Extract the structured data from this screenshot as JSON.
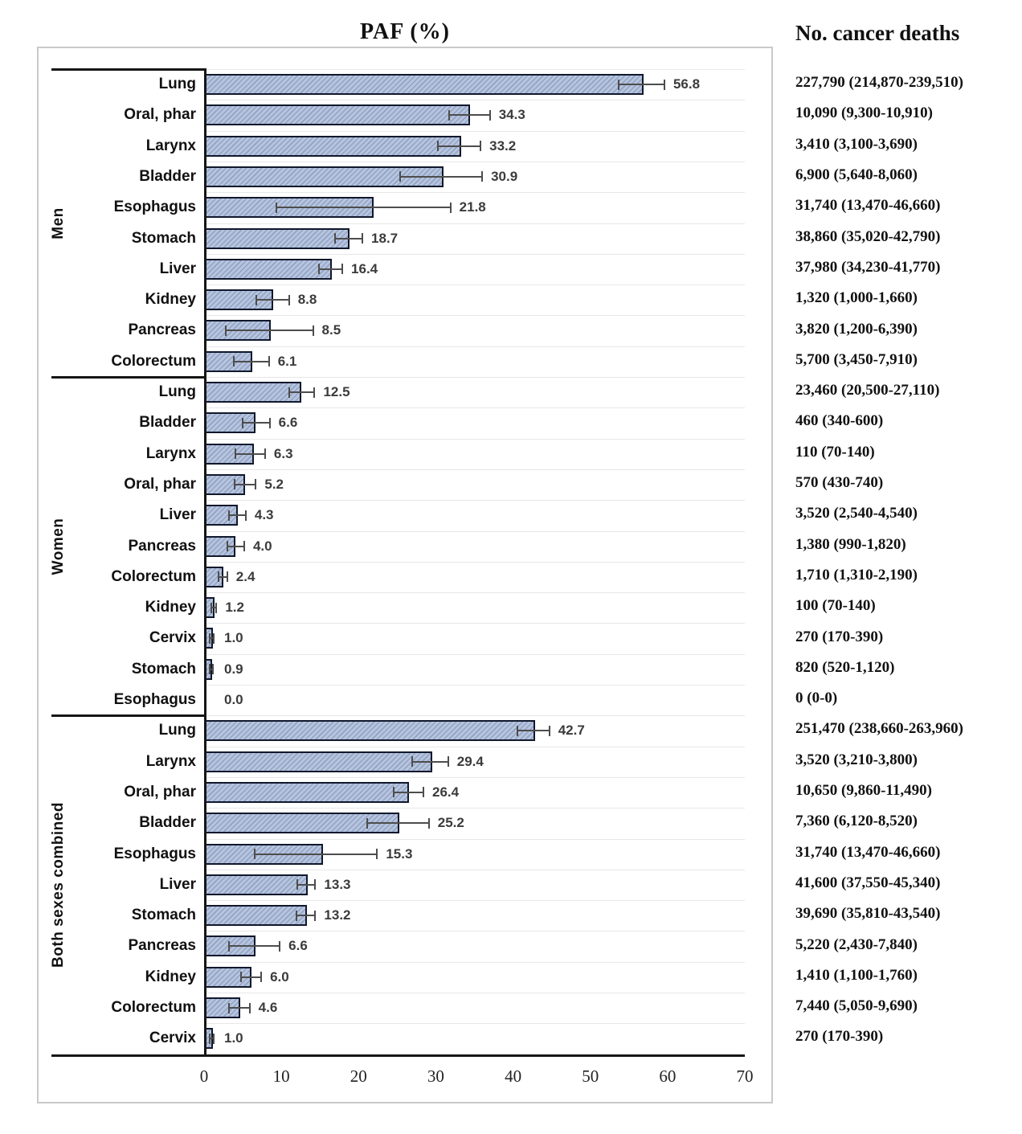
{
  "title": "PAF (%)",
  "right_header": "No. cancer deaths",
  "colors": {
    "bar_fill": "#b7c4de",
    "bar_hatch": "#91a3c4",
    "bar_border": "#10182b",
    "error_bar": "#4d4d4d",
    "value_text": "#3b3b3b",
    "grid_line": "#e7e7e7",
    "box_border": "#c9c9c9",
    "black_line": "#161616",
    "text": "#111111"
  },
  "chart_data": {
    "type": "bar",
    "orientation": "horizontal",
    "title": "PAF (%)",
    "right_column_header": "No. cancer deaths",
    "xlim": [
      0,
      70
    ],
    "x_ticks": [
      0,
      10,
      20,
      30,
      40,
      50,
      60,
      70
    ],
    "grid": "light horizontal row separators",
    "error_bars": true,
    "groups": [
      {
        "label": "Men",
        "rows": [
          {
            "category": "Lung",
            "paf": 56.8,
            "ci_low": 53.6,
            "ci_high": 59.7,
            "deaths": "227,790 (214,870-239,510)"
          },
          {
            "category": "Oral, phar",
            "paf": 34.3,
            "ci_low": 31.6,
            "ci_high": 37.1,
            "deaths": "10,090 (9,300-10,910)"
          },
          {
            "category": "Larynx",
            "paf": 33.2,
            "ci_low": 30.2,
            "ci_high": 35.9,
            "deaths": "3,410 (3,100-3,690)"
          },
          {
            "category": "Bladder",
            "paf": 30.9,
            "ci_low": 25.3,
            "ci_high": 36.1,
            "deaths": "6,900 (5,640-8,060)"
          },
          {
            "category": "Esophagus",
            "paf": 21.8,
            "ci_low": 9.3,
            "ci_high": 32.0,
            "deaths": "31,740 (13,470-46,660)"
          },
          {
            "category": "Stomach",
            "paf": 18.7,
            "ci_low": 16.9,
            "ci_high": 20.6,
            "deaths": "38,860 (35,020-42,790)"
          },
          {
            "category": "Liver",
            "paf": 16.4,
            "ci_low": 14.8,
            "ci_high": 18.0,
            "deaths": "37,980 (34,230-41,770)"
          },
          {
            "category": "Kidney",
            "paf": 8.8,
            "ci_low": 6.7,
            "ci_high": 11.1,
            "deaths": "1,320 (1,000-1,660)"
          },
          {
            "category": "Pancreas",
            "paf": 8.5,
            "ci_low": 2.7,
            "ci_high": 14.2,
            "deaths": "3,820 (1,200-6,390)"
          },
          {
            "category": "Colorectum",
            "paf": 6.1,
            "ci_low": 3.7,
            "ci_high": 8.5,
            "deaths": "5,700 (3,450-7,910)"
          }
        ]
      },
      {
        "label": "Women",
        "rows": [
          {
            "category": "Lung",
            "paf": 12.5,
            "ci_low": 10.9,
            "ci_high": 14.4,
            "deaths": "23,460 (20,500-27,110)"
          },
          {
            "category": "Bladder",
            "paf": 6.6,
            "ci_low": 4.9,
            "ci_high": 8.6,
            "deaths": "460 (340-600)"
          },
          {
            "category": "Larynx",
            "paf": 6.3,
            "ci_low": 4.0,
            "ci_high": 8.0,
            "deaths": "110 (70-140)"
          },
          {
            "category": "Oral, phar",
            "paf": 5.2,
            "ci_low": 3.9,
            "ci_high": 6.8,
            "deaths": "570 (430-740)"
          },
          {
            "category": "Liver",
            "paf": 4.3,
            "ci_low": 3.1,
            "ci_high": 5.5,
            "deaths": "3,520 (2,540-4,540)"
          },
          {
            "category": "Pancreas",
            "paf": 4.0,
            "ci_low": 2.9,
            "ci_high": 5.3,
            "deaths": "1,380 (990-1,820)"
          },
          {
            "category": "Colorectum",
            "paf": 2.4,
            "ci_low": 1.8,
            "ci_high": 3.1,
            "deaths": "1,710 (1,310-2,190)"
          },
          {
            "category": "Kidney",
            "paf": 1.2,
            "ci_low": 0.8,
            "ci_high": 1.7,
            "deaths": "100 (70-140)"
          },
          {
            "category": "Cervix",
            "paf": 1.0,
            "ci_low": 0.6,
            "ci_high": 1.4,
            "deaths": "270 (170-390)"
          },
          {
            "category": "Stomach",
            "paf": 0.9,
            "ci_low": 0.6,
            "ci_high": 1.2,
            "deaths": "820 (520-1,120)"
          },
          {
            "category": "Esophagus",
            "paf": 0.0,
            "ci_low": 0.0,
            "ci_high": 0.0,
            "deaths": "0 (0-0)"
          }
        ]
      },
      {
        "label": "Both sexes combined",
        "rows": [
          {
            "category": "Lung",
            "paf": 42.7,
            "ci_low": 40.5,
            "ci_high": 44.8,
            "deaths": "251,470 (238,660-263,960)"
          },
          {
            "category": "Larynx",
            "paf": 29.4,
            "ci_low": 26.8,
            "ci_high": 31.7,
            "deaths": "3,520 (3,210-3,800)"
          },
          {
            "category": "Oral, phar",
            "paf": 26.4,
            "ci_low": 24.4,
            "ci_high": 28.5,
            "deaths": "10,650 (9,860-11,490)"
          },
          {
            "category": "Bladder",
            "paf": 25.2,
            "ci_low": 21.0,
            "ci_high": 29.2,
            "deaths": "7,360 (6,120-8,520)"
          },
          {
            "category": "Esophagus",
            "paf": 15.3,
            "ci_low": 6.5,
            "ci_high": 22.5,
            "deaths": "31,740 (13,470-46,660)"
          },
          {
            "category": "Liver",
            "paf": 13.3,
            "ci_low": 12.0,
            "ci_high": 14.5,
            "deaths": "41,600 (37,550-45,340)"
          },
          {
            "category": "Stomach",
            "paf": 13.2,
            "ci_low": 11.9,
            "ci_high": 14.5,
            "deaths": "39,690 (35,810-43,540)"
          },
          {
            "category": "Pancreas",
            "paf": 6.6,
            "ci_low": 3.1,
            "ci_high": 9.9,
            "deaths": "5,220 (2,430-7,840)"
          },
          {
            "category": "Kidney",
            "paf": 6.0,
            "ci_low": 4.7,
            "ci_high": 7.5,
            "deaths": "1,410 (1,100-1,760)"
          },
          {
            "category": "Colorectum",
            "paf": 4.6,
            "ci_low": 3.1,
            "ci_high": 6.0,
            "deaths": "7,440 (5,050-9,690)"
          },
          {
            "category": "Cervix",
            "paf": 1.0,
            "ci_low": 0.6,
            "ci_high": 1.4,
            "deaths": "270 (170-390)"
          }
        ]
      }
    ]
  }
}
